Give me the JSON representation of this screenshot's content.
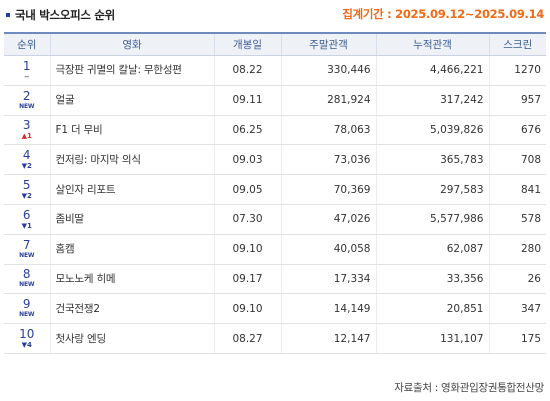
{
  "header": {
    "title": "국내 박스오피스 순위",
    "period": "집계기간 : 2025.09.12~2025.09.14"
  },
  "table": {
    "columns": [
      "순위",
      "영화",
      "개봉일",
      "주말관객",
      "누적관객",
      "스크린"
    ],
    "rows": [
      {
        "rank": "1",
        "change": "",
        "change_type": "same",
        "title": "극장판 귀멸의 칼날: 무한성편",
        "release": "08.22",
        "weekend": "330,446",
        "total": "4,466,221",
        "screens": "1270"
      },
      {
        "rank": "2",
        "change": "NEW",
        "change_type": "new",
        "title": "얼굴",
        "release": "09.11",
        "weekend": "281,924",
        "total": "317,242",
        "screens": "957"
      },
      {
        "rank": "3",
        "change": "1",
        "change_type": "up",
        "title": "F1 더 무비",
        "release": "06.25",
        "weekend": "78,063",
        "total": "5,039,826",
        "screens": "676"
      },
      {
        "rank": "4",
        "change": "2",
        "change_type": "down",
        "title": "컨저링: 마지막 의식",
        "release": "09.03",
        "weekend": "73,036",
        "total": "365,783",
        "screens": "708"
      },
      {
        "rank": "5",
        "change": "2",
        "change_type": "down",
        "title": "살인자 리포트",
        "release": "09.05",
        "weekend": "70,369",
        "total": "297,583",
        "screens": "841"
      },
      {
        "rank": "6",
        "change": "1",
        "change_type": "down",
        "title": "좀비딸",
        "release": "07.30",
        "weekend": "47,026",
        "total": "5,577,986",
        "screens": "578"
      },
      {
        "rank": "7",
        "change": "NEW",
        "change_type": "new",
        "title": "홈캠",
        "release": "09.10",
        "weekend": "40,058",
        "total": "62,087",
        "screens": "280"
      },
      {
        "rank": "8",
        "change": "NEW",
        "change_type": "new",
        "title": "모노노케 히메",
        "release": "09.17",
        "weekend": "17,334",
        "total": "33,356",
        "screens": "26"
      },
      {
        "rank": "9",
        "change": "NEW",
        "change_type": "new",
        "title": "건국전쟁2",
        "release": "09.10",
        "weekend": "14,149",
        "total": "20,851",
        "screens": "347"
      },
      {
        "rank": "10",
        "change": "4",
        "change_type": "down",
        "title": "첫사랑 엔딩",
        "release": "08.27",
        "weekend": "12,147",
        "total": "131,107",
        "screens": "175"
      }
    ]
  },
  "footer": {
    "source": "자료출처 : 영화관입장권통합전산망"
  },
  "colors": {
    "accent_orange": "#f26a13",
    "rank_blue": "#2a3f9d",
    "header_text": "#3b5d93",
    "header_bg": "#eef2f7",
    "up_red": "#d62b2b"
  }
}
